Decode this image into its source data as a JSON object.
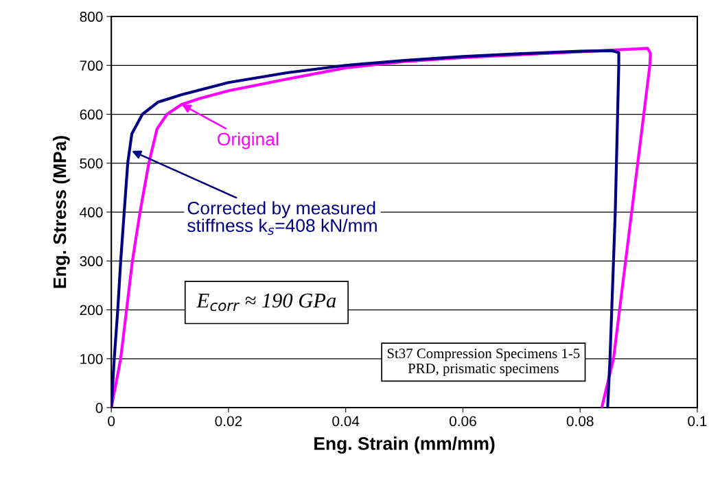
{
  "chart_data": {
    "type": "line",
    "xlabel": "Eng. Strain (mm/mm)",
    "ylabel": "Eng. Stress (MPa)",
    "xlim": [
      0,
      0.1
    ],
    "ylim": [
      0,
      800
    ],
    "xticks": [
      0,
      0.02,
      0.04,
      0.06,
      0.08,
      0.1
    ],
    "yticks": [
      0,
      100,
      200,
      300,
      400,
      500,
      600,
      700,
      800
    ],
    "grid": "y",
    "marker": "none",
    "line_style": "solid",
    "series": [
      {
        "color": "#ff00ff",
        "x": [
          0,
          0.0016,
          0.0026,
          0.0036,
          0.0049,
          0.0064,
          0.0078,
          0.0095,
          0.012,
          0.015,
          0.02,
          0.03,
          0.04,
          0.05,
          0.06,
          0.07,
          0.08,
          0.09,
          0.0915,
          0.092,
          0.0919,
          0.0888,
          0.0857,
          0.0837
        ],
        "values": [
          0,
          100,
          200,
          300,
          400,
          500,
          570,
          600,
          620,
          632,
          648,
          672,
          695,
          708,
          716,
          722,
          728,
          734,
          735,
          725,
          700,
          400,
          100,
          0
        ]
      },
      {
        "color": "#000080",
        "x": [
          0,
          0.0005,
          0.0011,
          0.0016,
          0.0022,
          0.0028,
          0.0035,
          0.0053,
          0.008,
          0.012,
          0.02,
          0.03,
          0.04,
          0.05,
          0.06,
          0.07,
          0.08,
          0.0855,
          0.0866,
          0.0866,
          0.086,
          0.0851,
          0.0847
        ],
        "values": [
          0,
          100,
          200,
          300,
          400,
          500,
          560,
          600,
          625,
          640,
          665,
          685,
          700,
          710,
          718,
          724,
          729,
          730,
          726,
          700,
          400,
          100,
          0
        ]
      }
    ],
    "annotations": [
      {
        "text": "Original",
        "x": 0.012,
        "y": 620
      },
      {
        "text": "Corrected by measured\nstiffness k$_{s}$=408 kN/mm",
        "x": 0.0035,
        "y": 525
      },
      "E$_{corr}$ ≈ 190 GPa",
      "St37 Compression Specimens 1-5\nPRD, prismatic specimens"
    ]
  }
}
